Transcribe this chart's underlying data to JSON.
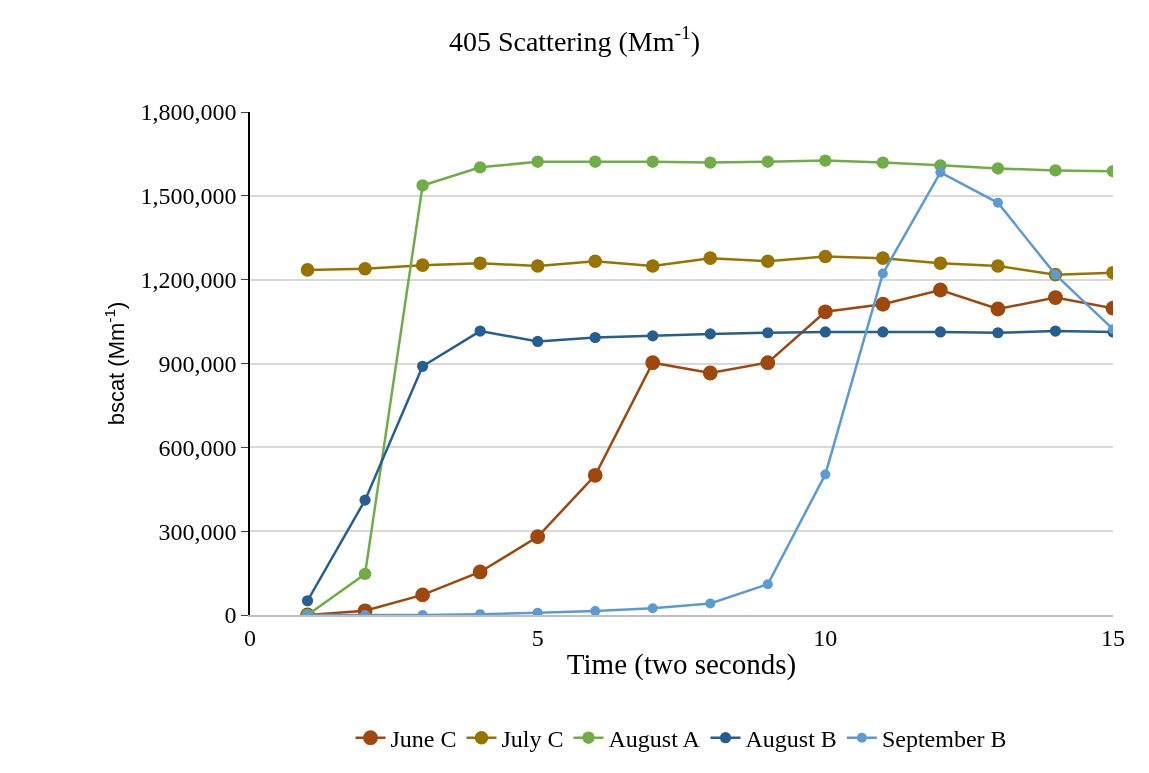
{
  "chart_data": {
    "type": "line",
    "title": "405 Scattering (Mm$^{-1}$)",
    "xlabel": "Time (two seconds)",
    "ylabel": "bscat (Mm$^{-1}$)",
    "x": [
      1,
      2,
      3,
      4,
      5,
      6,
      7,
      8,
      9,
      10,
      11,
      12,
      13,
      14,
      15
    ],
    "series": [
      {
        "name": "June C",
        "color": "#9e480e",
        "values": [
          0,
          15000,
          72000,
          154000,
          280000,
          500000,
          903000,
          866000,
          903000,
          1085000,
          1112000,
          1163000,
          1095000,
          1136000,
          1098000
        ]
      },
      {
        "name": "July C",
        "color": "#997300",
        "values": [
          1235000,
          1239000,
          1252000,
          1259000,
          1249000,
          1266000,
          1249000,
          1277000,
          1266000,
          1283000,
          1277000,
          1259000,
          1249000,
          1218000,
          1225000
        ]
      },
      {
        "name": "August A",
        "color": "#70ad47",
        "values": [
          0,
          147000,
          1537000,
          1602000,
          1622000,
          1622000,
          1622000,
          1619000,
          1622000,
          1626000,
          1619000,
          1609000,
          1598000,
          1591000,
          1588000
        ]
      },
      {
        "name": "August B",
        "color": "#255e91",
        "values": [
          51000,
          411000,
          890000,
          1016000,
          979000,
          993000,
          999000,
          1006000,
          1010000,
          1013000,
          1013000,
          1013000,
          1010000,
          1016000,
          1013000
        ]
      },
      {
        "name": "September B",
        "color": "#5b9bd5",
        "values": [
          0,
          0,
          0,
          3000,
          8000,
          14000,
          24000,
          41000,
          110000,
          503000,
          1222000,
          1584000,
          1475000,
          1218000,
          1023000
        ]
      }
    ],
    "xlim": [
      0,
      15
    ],
    "xticks": [
      0,
      5,
      10,
      15
    ],
    "ylim": [
      0,
      1800000
    ],
    "yticks": [
      {
        "value": 0,
        "label": "0"
      },
      {
        "value": 300000,
        "label": "300,000"
      },
      {
        "value": 600000,
        "label": "600,000"
      },
      {
        "value": 900000,
        "label": "900,000"
      },
      {
        "value": 1200000,
        "label": "1,200,000"
      },
      {
        "value": 1500000,
        "label": "1,500,000"
      },
      {
        "value": 1800000,
        "label": "1,800,000"
      }
    ],
    "grid": "y",
    "legend": "bottom",
    "marker": "circle",
    "line_style": "solid"
  }
}
